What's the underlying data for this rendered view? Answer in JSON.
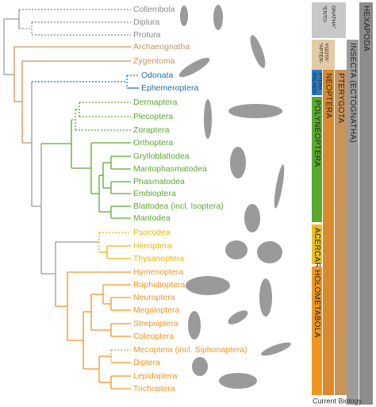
{
  "taxa": [
    {
      "label": "Collembola",
      "color": "#8a8a8a"
    },
    {
      "label": "Diplura",
      "color": "#8a8a8a"
    },
    {
      "label": "Protura",
      "color": "#8a8a8a"
    },
    {
      "label": "Archaeognatha",
      "color": "#c8945a"
    },
    {
      "label": "Zygentoma",
      "color": "#c8945a"
    },
    {
      "label": "Odonata",
      "color": "#1f6fb5"
    },
    {
      "label": "Ephemeroptera",
      "color": "#1f6fb5"
    },
    {
      "label": "Dermaptera",
      "color": "#5aaa2d"
    },
    {
      "label": "Plecoptera",
      "color": "#5aaa2d"
    },
    {
      "label": "Zoraptera",
      "color": "#5aaa2d"
    },
    {
      "label": "Orthoptera",
      "color": "#5aaa2d"
    },
    {
      "label": "Grylloblattodea",
      "color": "#5aaa2d"
    },
    {
      "label": "Mantophasmatodea",
      "color": "#5aaa2d"
    },
    {
      "label": "Phasmatodea",
      "color": "#5aaa2d"
    },
    {
      "label": "Embioptera",
      "color": "#5aaa2d"
    },
    {
      "label": "Blattodea (incl. Isoptera)",
      "color": "#5aaa2d"
    },
    {
      "label": "Mantodea",
      "color": "#5aaa2d"
    },
    {
      "label": "Psocodea",
      "color": "#e5b800"
    },
    {
      "label": "Hemiptera",
      "color": "#e5b800"
    },
    {
      "label": "Thysanoptera",
      "color": "#e5b800"
    },
    {
      "label": "Hymenoptera",
      "color": "#f0961e"
    },
    {
      "label": "Raphidioptera",
      "color": "#f0961e"
    },
    {
      "label": "Neuroptera",
      "color": "#f0961e"
    },
    {
      "label": "Megaloptera",
      "color": "#f0961e"
    },
    {
      "label": "Strepsiptera",
      "color": "#f0961e"
    },
    {
      "label": "Coleoptera",
      "color": "#f0961e"
    },
    {
      "label": "Mecoptera (incl. Siphonaptera)",
      "color": "#f0961e"
    },
    {
      "label": "Diptera",
      "color": "#f0961e"
    },
    {
      "label": "Lepidoptera",
      "color": "#f0961e"
    },
    {
      "label": "Trichoptera",
      "color": "#f0961e"
    }
  ],
  "bars": [
    {
      "lines": [
        "“ENTO-",
        "GNATHA”"
      ],
      "color": "#c8c8c8"
    },
    {
      "lines": [
        "“APTER-",
        "YGOTA”"
      ],
      "color": "#e3cba6"
    },
    {
      "lines": [
        "PTERYGOTA"
      ],
      "color": "#c8945a"
    },
    {
      "lines": [
        "INSECTA (ECTOGNATHA)"
      ],
      "color": "#9c9c9c"
    },
    {
      "lines": [
        "HEXAPODA"
      ],
      "color": "#8c8c8c"
    },
    {
      "lines": [
        "PALAEO-",
        "PTERA"
      ],
      "color": "#2a7bc4"
    },
    {
      "lines": [
        "NEOPTERA"
      ],
      "color": "#d98a2c"
    },
    {
      "lines": [
        "POLYNEOPTERA"
      ],
      "color": "#5aaa2d"
    },
    {
      "lines": [
        "ACERCARIA"
      ],
      "color": "#e8c020"
    },
    {
      "lines": [
        "HOLOMETABOLA"
      ],
      "color": "#f0961e"
    }
  ],
  "footer": "Current Biology"
}
